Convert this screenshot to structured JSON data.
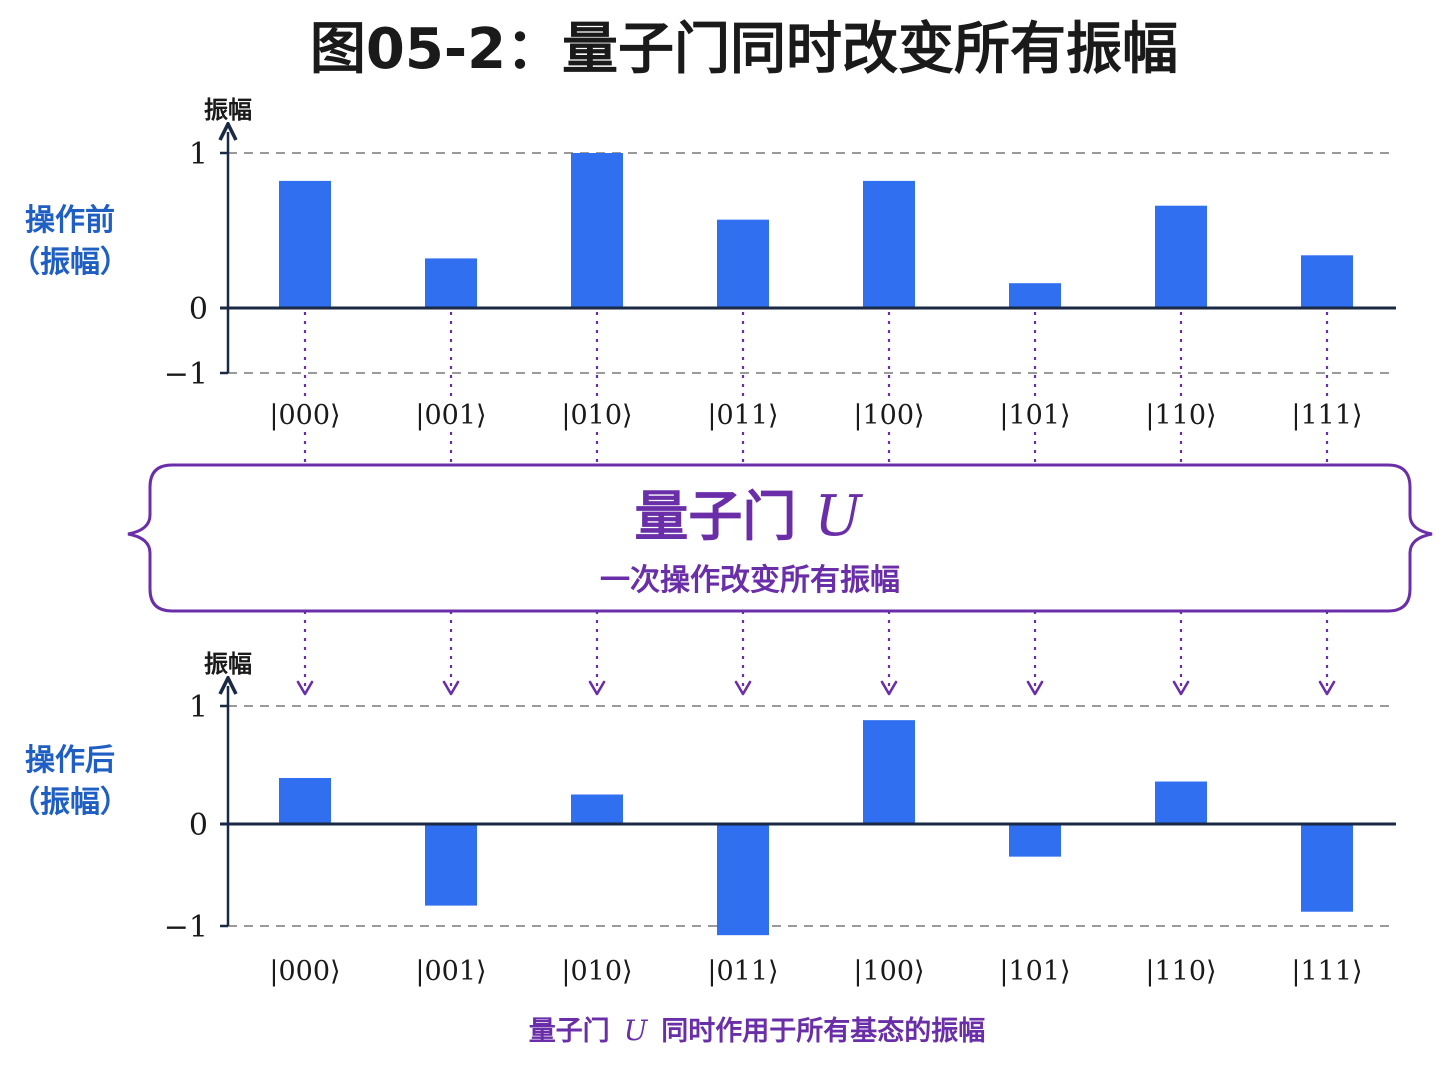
{
  "title": "图05-2：量子门同时改变所有振幅",
  "colors": {
    "bar": "#2f6ff0",
    "gate": "#6a2fa8",
    "side_label": "#1f5fc4",
    "axis": "#1a2a44",
    "grid": "#9a9a9a"
  },
  "gate": {
    "title": "量子门",
    "symbol": "U",
    "subtitle": "一次操作改变所有振幅"
  },
  "caption": {
    "prefix": "量子门",
    "symbol": "U",
    "suffix": "同时作用于所有基态的振幅"
  },
  "chart_data": [
    {
      "type": "bar",
      "side_label_line1": "操作前",
      "side_label_line2": "（振幅）",
      "ylabel": "振幅",
      "ylim": [
        -1,
        1
      ],
      "yticks": [
        1,
        0,
        -1
      ],
      "ytick_labels": [
        "1",
        "0",
        "−1"
      ],
      "grid": "dashed at y=1 and y=-1",
      "categories": [
        "|000⟩",
        "|001⟩",
        "|010⟩",
        "|011⟩",
        "|100⟩",
        "|101⟩",
        "|110⟩",
        "|111⟩"
      ],
      "values": [
        0.82,
        0.32,
        1.0,
        0.57,
        0.82,
        0.16,
        0.66,
        0.34
      ]
    },
    {
      "type": "bar",
      "side_label_line1": "操作后",
      "side_label_line2": "（振幅）",
      "ylabel": "振幅",
      "ylim": [
        -1,
        1
      ],
      "yticks": [
        1,
        0,
        -1
      ],
      "ytick_labels": [
        "1",
        "0",
        "−1"
      ],
      "grid": "dashed at y=1 and y=-1",
      "categories": [
        "|000⟩",
        "|001⟩",
        "|010⟩",
        "|011⟩",
        "|100⟩",
        "|101⟩",
        "|110⟩",
        "|111⟩"
      ],
      "values": [
        0.39,
        -0.8,
        0.25,
        -1.09,
        0.88,
        -0.32,
        0.36,
        -0.86
      ]
    }
  ]
}
